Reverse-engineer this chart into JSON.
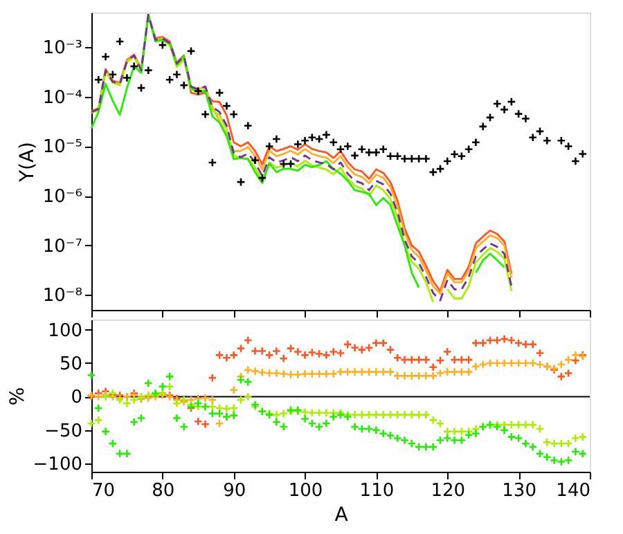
{
  "chart_data": [
    {
      "type": "line",
      "ylabel": "Y(A)",
      "log": "y",
      "tick_labels": "y",
      "grid": false,
      "xlim": [
        70,
        140
      ],
      "xticks": [
        70,
        80,
        90,
        100,
        110,
        120,
        130,
        140
      ],
      "ylim": [
        5e-09,
        0.005
      ],
      "yticks": [
        {
          "value": 1e-08,
          "label": "10⁻⁸"
        },
        {
          "value": 1e-07,
          "label": "10⁻⁷"
        },
        {
          "value": 1e-06,
          "label": "10⁻⁶"
        },
        {
          "value": 1e-05,
          "label": "10⁻⁵"
        },
        {
          "value": 0.0001,
          "label": "10⁻⁴"
        },
        {
          "value": 0.001,
          "label": "10⁻³"
        }
      ],
      "x": [
        70,
        71,
        72,
        73,
        74,
        75,
        76,
        77,
        78,
        79,
        80,
        81,
        82,
        83,
        84,
        85,
        86,
        87,
        88,
        89,
        90,
        91,
        92,
        93,
        94,
        95,
        96,
        97,
        98,
        99,
        100,
        101,
        102,
        103,
        104,
        105,
        106,
        107,
        108,
        109,
        110,
        111,
        112,
        113,
        114,
        115,
        116,
        117,
        118,
        119,
        120,
        121,
        122,
        123,
        124,
        125,
        126,
        127,
        128,
        129
      ],
      "series": [
        {
          "color": "#ff5522",
          "line_style": "solid",
          "values": [
            5.1e-05,
            5.9e-05,
            0.00036,
            0.00021,
            0.00019,
            0.00055,
            0.00071,
            0.00036,
            0.0045,
            0.0015,
            0.0016,
            0.0013,
            0.00049,
            0.00068,
            0.00012,
            0.00011,
            0.00012,
            8.1e-05,
            7.8e-05,
            4.2e-05,
            1.2e-05,
            1e-05,
            1.2e-05,
            8e-06,
            4.3e-06,
            1e-05,
            8e-06,
            8.8e-06,
            1e-05,
            8.5e-06,
            1.1e-05,
            8.8e-06,
            8e-06,
            7.5e-06,
            5.8e-06,
            8e-06,
            4.8e-06,
            3.4e-06,
            3.1e-06,
            2.2e-06,
            3.4e-06,
            2.9e-06,
            1.9e-06,
            8e-07,
            2.2e-07,
            1e-07,
            7.5e-08,
            3.9e-08,
            1.9e-08,
            1.2e-08,
            3.2e-08,
            2.1e-08,
            2.1e-08,
            3.7e-08,
            1.1e-07,
            1.5e-07,
            2e-07,
            1.7e-07,
            1.2e-07,
            2.7e-08
          ]
        },
        {
          "color": "#ffb020",
          "line_style": "solid",
          "values": [
            4.9e-05,
            5.6e-05,
            0.00034,
            0.0002,
            0.00018,
            0.00052,
            0.00068,
            0.00034,
            0.0045,
            0.0014,
            0.0015,
            0.0012,
            0.00047,
            0.00065,
            0.00016,
            0.00014,
            0.00016,
            6.2e-05,
            3.2e-05,
            1.7e-05,
            7.9e-06,
            8.1e-06,
            9.7e-06,
            6.3e-06,
            3.4e-06,
            8.1e-06,
            6.3e-06,
            7e-06,
            8.1e-06,
            6.8e-06,
            8.8e-06,
            7e-06,
            6.3e-06,
            5.9e-06,
            4.6e-06,
            6.3e-06,
            3.8e-06,
            2.7e-06,
            2.4e-06,
            1.8e-06,
            2.7e-06,
            2.3e-06,
            1.5e-06,
            6.3e-07,
            1.8e-07,
            8.1e-08,
            5.9e-08,
            3.1e-08,
            1.5e-08,
            1.05e-08,
            2.7e-08,
            1.8e-08,
            1.8e-08,
            3.1e-08,
            8.7e-08,
            1.2e-07,
            1.6e-07,
            1.4e-07,
            1e-07,
            2.2e-08
          ]
        },
        {
          "color": "#a8f000",
          "line_style": "solid",
          "values": [
            4.7e-05,
            5.3e-05,
            0.00032,
            0.00019,
            0.00017,
            0.00049,
            0.00065,
            0.00032,
            0.0043,
            0.0013,
            0.0014,
            0.0011,
            0.0004,
            0.00055,
            0.00014,
            0.00012,
            0.00014,
            5.3e-05,
            4.2e-05,
            2.2e-05,
            6.5e-06,
            5.7e-06,
            5.6e-06,
            3.7e-06,
            2e-06,
            4.7e-06,
            3.7e-06,
            4.1e-06,
            4.7e-06,
            3.9e-06,
            5.1e-06,
            4.1e-06,
            3.7e-06,
            3.4e-06,
            2.7e-06,
            3.7e-06,
            2.2e-06,
            1.6e-06,
            1.4e-06,
            1e-06,
            1.6e-06,
            1.3e-06,
            8.6e-07,
            3.7e-07,
            1e-07,
            4.7e-08,
            3.4e-08,
            1.8e-08,
            7.2e-09,
            null,
            1.3e-08,
            8.5e-09,
            8.5e-09,
            1.5e-08,
            4.5e-08,
            6.5e-08,
            8.8e-08,
            7.4e-08,
            5.4e-08,
            1.2e-08
          ]
        },
        {
          "color": "#22ee00",
          "line_style": "solid",
          "values": [
            2.3e-05,
            4.9e-05,
            0.00018,
            8.3e-05,
            4.3e-05,
            0.00015,
            0.00041,
            0.0003,
            0.0045,
            0.0013,
            0.0014,
            0.0012,
            0.00044,
            0.00065,
            0.00015,
            0.00012,
            0.00013,
            4e-05,
            3e-05,
            1.6e-05,
            5.5e-06,
            5.8e-06,
            5.5e-06,
            3e-06,
            1.8e-06,
            4.5e-06,
            3e-06,
            3.5e-06,
            3.5e-06,
            3.2e-06,
            4.2e-06,
            3.8e-06,
            4.2e-06,
            5e-06,
            3.5e-06,
            2.8e-06,
            2e-06,
            1.3e-06,
            1.2e-06,
            1.1e-06,
            6.5e-07,
            9e-07,
            6.5e-07,
            2.5e-07,
            1e-07,
            2.8e-08,
            1.4e-08,
            null,
            null,
            null,
            null,
            null,
            null,
            null,
            2.8e-08,
            5e-08,
            6.8e-08,
            5e-08,
            3.6e-08,
            null
          ]
        },
        {
          "color": "#7030a0",
          "line_style": "dashed",
          "values": [
            4.9e-05,
            5.6e-05,
            0.00034,
            0.0002,
            0.00018,
            0.00052,
            0.00068,
            0.00034,
            0.0045,
            0.0014,
            0.0015,
            0.0012,
            0.00047,
            0.00065,
            0.00016,
            0.00014,
            0.00016,
            6.2e-05,
            4.9e-05,
            2.6e-05,
            7.2e-06,
            6e-06,
            7.2e-06,
            4.7e-06,
            2.5e-06,
            6e-06,
            4.7e-06,
            5.2e-06,
            6e-06,
            5e-06,
            6.5e-06,
            5.2e-06,
            4.7e-06,
            4.4e-06,
            3.4e-06,
            4.7e-06,
            2.8e-06,
            2e-06,
            1.8e-06,
            1.3e-06,
            2e-06,
            1.7e-06,
            1.1e-06,
            4.7e-07,
            1.3e-07,
            6e-08,
            4.4e-08,
            2.3e-08,
            1.1e-08,
            7.8e-09,
            2e-08,
            1.3e-08,
            1.3e-08,
            2.3e-08,
            6e-08,
            8.3e-08,
            1.1e-07,
            9.3e-08,
            6.8e-08,
            1.5e-08
          ]
        },
        {
          "type": "scatter",
          "marker": "cross",
          "color": "#000000",
          "x": [
            71,
            72,
            73,
            74,
            75,
            76,
            77,
            78,
            80,
            81,
            82,
            83,
            84,
            85,
            86,
            87,
            88,
            89,
            90,
            91,
            92,
            93,
            94,
            95,
            96,
            97,
            98,
            99,
            100,
            101,
            102,
            103,
            104,
            105,
            106,
            107,
            108,
            109,
            110,
            111,
            112,
            113,
            114,
            115,
            116,
            117,
            118,
            119,
            120,
            121,
            122,
            123,
            124,
            125,
            126,
            127,
            128,
            129,
            130,
            131,
            132,
            133,
            134,
            136,
            137,
            138,
            139
          ],
          "values": [
            0.00022,
            0.00064,
            0.00028,
            0.0013,
            0.00024,
            0.00041,
            0.00015,
            0.00034,
            0.0011,
            0.00022,
            0.00028,
            0.00017,
            0.00083,
            0.00013,
            4.4e-05,
            4.7e-06,
            0.00012,
            6.5e-05,
            4.4e-05,
            1.9e-06,
            2.6e-05,
            5.2e-06,
            2.3e-06,
            1e-05,
            1.4e-05,
            4.4e-06,
            4.4e-06,
            1.1e-05,
            1.3e-05,
            1.5e-05,
            1.4e-05,
            1.7e-05,
            1.2e-05,
            8.7e-06,
            1e-05,
            6.5e-06,
            8.7e-06,
            7.5e-06,
            7.5e-06,
            8.7e-06,
            6.3e-06,
            6.3e-06,
            5.6e-06,
            5.6e-06,
            5.6e-06,
            5.6e-06,
            3e-06,
            3.5e-06,
            5e-06,
            6.9e-06,
            6.3e-06,
            8.7e-06,
            1.2e-05,
            2.5e-05,
            3.8e-05,
            7.2e-05,
            5.5e-05,
            7.9e-05,
            4.5e-05,
            3.6e-05,
            1.5e-05,
            2e-05,
            1.3e-05,
            1.3e-05,
            1e-05,
            5e-06,
            7e-06
          ]
        }
      ]
    },
    {
      "type": "scatter",
      "marker": "cross",
      "xlabel": "A",
      "ylabel": "%",
      "grid": false,
      "xlim": [
        70,
        140
      ],
      "xticks": [
        70,
        80,
        90,
        100,
        110,
        120,
        130,
        140
      ],
      "ylim": [
        -112,
        115
      ],
      "yticks": [
        -100,
        -50,
        0,
        50,
        100
      ],
      "ref_lines": [
        {
          "axis": "y",
          "value": 0,
          "color": "#000000"
        }
      ],
      "x": [
        70,
        71,
        72,
        73,
        74,
        75,
        76,
        77,
        78,
        79,
        80,
        81,
        82,
        83,
        84,
        85,
        86,
        87,
        88,
        89,
        90,
        91,
        92,
        93,
        94,
        95,
        96,
        97,
        98,
        99,
        100,
        101,
        102,
        103,
        104,
        105,
        106,
        107,
        108,
        109,
        110,
        111,
        112,
        113,
        114,
        115,
        116,
        117,
        118,
        119,
        120,
        121,
        122,
        123,
        124,
        125,
        126,
        127,
        128,
        129,
        130,
        131,
        132,
        133,
        134,
        135,
        136,
        137,
        138,
        139
      ],
      "series": [
        {
          "color": "#ff5522",
          "values": [
            0,
            5,
            8,
            3,
            2,
            0,
            5,
            -3,
            0,
            3,
            5,
            2,
            -3,
            -7,
            -17,
            -37,
            -41,
            28,
            62,
            58,
            62,
            72,
            84,
            68,
            68,
            62,
            68,
            57,
            72,
            67,
            62,
            66,
            64,
            62,
            67,
            65,
            78,
            73,
            70,
            73,
            80,
            80,
            70,
            58,
            55,
            55,
            55,
            55,
            44,
            54,
            67,
            55,
            55,
            55,
            80,
            80,
            84,
            84,
            86,
            84,
            80,
            78,
            78,
            65,
            45,
            40,
            30,
            35,
            54,
            62
          ]
        },
        {
          "color": "#ffb020",
          "values": [
            2,
            0,
            3,
            0,
            -2,
            0,
            2,
            0,
            -2,
            0,
            2,
            0,
            -5,
            -8,
            -5,
            -3,
            -2,
            -5,
            -40,
            -30,
            10,
            30,
            40,
            38,
            36,
            35,
            35,
            34,
            33,
            33,
            34,
            34,
            34,
            34,
            34,
            37,
            37,
            37,
            37,
            37,
            37,
            37,
            37,
            31,
            31,
            31,
            31,
            31,
            31,
            35,
            37,
            37,
            37,
            37,
            45,
            48,
            50,
            50,
            50,
            50,
            50,
            50,
            50,
            48,
            45,
            42,
            48,
            55,
            62,
            60
          ]
        },
        {
          "color": "#a8f000",
          "values": [
            -40,
            -35,
            0,
            5,
            -5,
            -10,
            -5,
            -2,
            2,
            3,
            5,
            15,
            -10,
            -5,
            -12,
            -15,
            -15,
            -15,
            -17,
            -18,
            -17,
            -5,
            0,
            -15,
            -22,
            -25,
            -27,
            -25,
            -22,
            -22,
            -23,
            -24,
            -24,
            -24,
            -24,
            -24,
            -27,
            -27,
            -27,
            -27,
            -27,
            -27,
            -27,
            -27,
            -27,
            -27,
            -27,
            -27,
            -35,
            -40,
            -52,
            -52,
            -52,
            -52,
            -48,
            -45,
            -42,
            -42,
            -42,
            -42,
            -42,
            -42,
            -42,
            -48,
            -68,
            -70,
            -70,
            -70,
            -62,
            -60
          ]
        },
        {
          "color": "#22ee00",
          "values": [
            32,
            -17,
            -52,
            -70,
            -85,
            -85,
            -38,
            -32,
            20,
            5,
            15,
            30,
            -32,
            -45,
            -15,
            -10,
            -15,
            -25,
            -25,
            -30,
            -28,
            25,
            22,
            -12,
            -22,
            -27,
            -38,
            -45,
            -20,
            -20,
            -33,
            -40,
            -45,
            -40,
            -30,
            -27,
            -30,
            -45,
            -48,
            -48,
            -50,
            -55,
            -58,
            -62,
            -65,
            -70,
            -75,
            -75,
            -75,
            -65,
            -62,
            -65,
            -65,
            -57,
            -55,
            -45,
            -42,
            -45,
            -50,
            -60,
            -62,
            -70,
            -75,
            -85,
            -90,
            -95,
            -97,
            -95,
            -82,
            -85
          ]
        }
      ]
    }
  ]
}
